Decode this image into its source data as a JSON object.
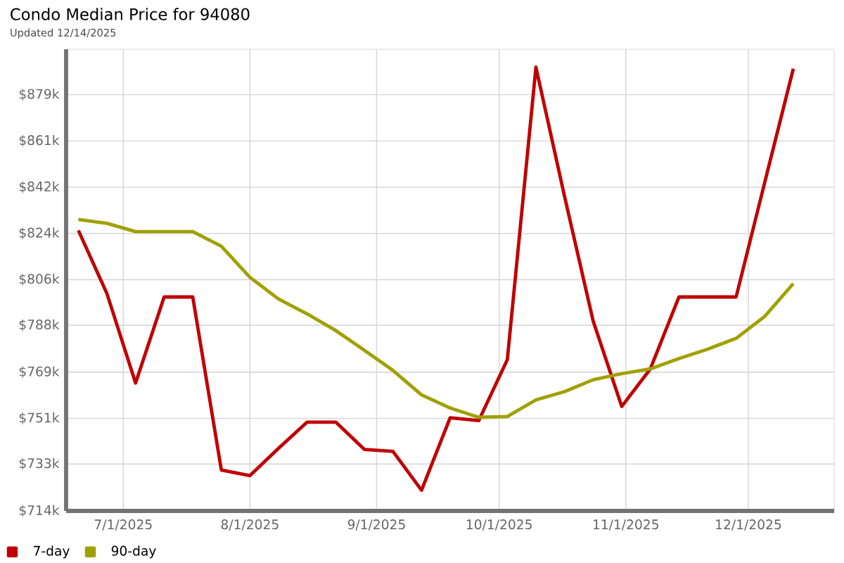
{
  "chart_data": {
    "type": "line",
    "title": "Condo Median Price for 94080",
    "subtitle": "Updated 12/14/2025",
    "x": [
      "2025-06-20",
      "2025-06-27",
      "2025-07-04",
      "2025-07-11",
      "2025-07-18",
      "2025-07-25",
      "2025-08-01",
      "2025-08-08",
      "2025-08-15",
      "2025-08-22",
      "2025-08-29",
      "2025-09-05",
      "2025-09-12",
      "2025-09-19",
      "2025-09-26",
      "2025-10-03",
      "2025-10-10",
      "2025-10-17",
      "2025-10-24",
      "2025-10-31",
      "2025-11-07",
      "2025-11-14",
      "2025-11-21",
      "2025-11-28",
      "2025-12-05",
      "2025-12-12"
    ],
    "series": [
      {
        "name": "7-day",
        "color": "#c00000",
        "values": [
          825.2,
          800.1,
          764.7,
          798.8,
          798.8,
          730.2,
          728.0,
          738.8,
          749.2,
          749.2,
          738.4,
          737.6,
          722.2,
          750.9,
          749.8,
          774.0,
          889.9,
          838.7,
          789.3,
          755.4,
          770.3,
          798.8,
          798.8,
          798.8,
          844.2,
          889.3
        ]
      },
      {
        "name": "90-day",
        "color": "#a0a000",
        "values": [
          829.5,
          828.0,
          824.7,
          824.7,
          824.7,
          818.9,
          806.6,
          798.0,
          792.1,
          785.5,
          777.7,
          769.7,
          760.0,
          754.8,
          751.1,
          751.4,
          758.0,
          761.3,
          766.0,
          768.4,
          770.3,
          774.4,
          778.1,
          782.4,
          791.1,
          804.1
        ]
      }
    ],
    "xlim": [
      "2025-06-17",
      "2025-12-22"
    ],
    "xticks": [
      {
        "value": "2025-07-01",
        "label": "7/1/2025"
      },
      {
        "value": "2025-08-01",
        "label": "8/1/2025"
      },
      {
        "value": "2025-09-01",
        "label": "9/1/2025"
      },
      {
        "value": "2025-10-01",
        "label": "10/1/2025"
      },
      {
        "value": "2025-11-01",
        "label": "11/1/2025"
      },
      {
        "value": "2025-12-01",
        "label": "12/1/2025"
      }
    ],
    "ylim": [
      714,
      897
    ],
    "yticks": [
      {
        "value": 714,
        "label": "$714k"
      },
      {
        "value": 732.6,
        "label": "$733k"
      },
      {
        "value": 750.67,
        "label": "$751k"
      },
      {
        "value": 769,
        "label": "$769k"
      },
      {
        "value": 787.6,
        "label": "$788k"
      },
      {
        "value": 805.67,
        "label": "$806k"
      },
      {
        "value": 824,
        "label": "$824k"
      },
      {
        "value": 842.33,
        "label": "$842k"
      },
      {
        "value": 860.67,
        "label": "$861k"
      },
      {
        "value": 879,
        "label": "$879k"
      }
    ],
    "grid": true,
    "legend": "bottom left",
    "line_style": "solid"
  }
}
